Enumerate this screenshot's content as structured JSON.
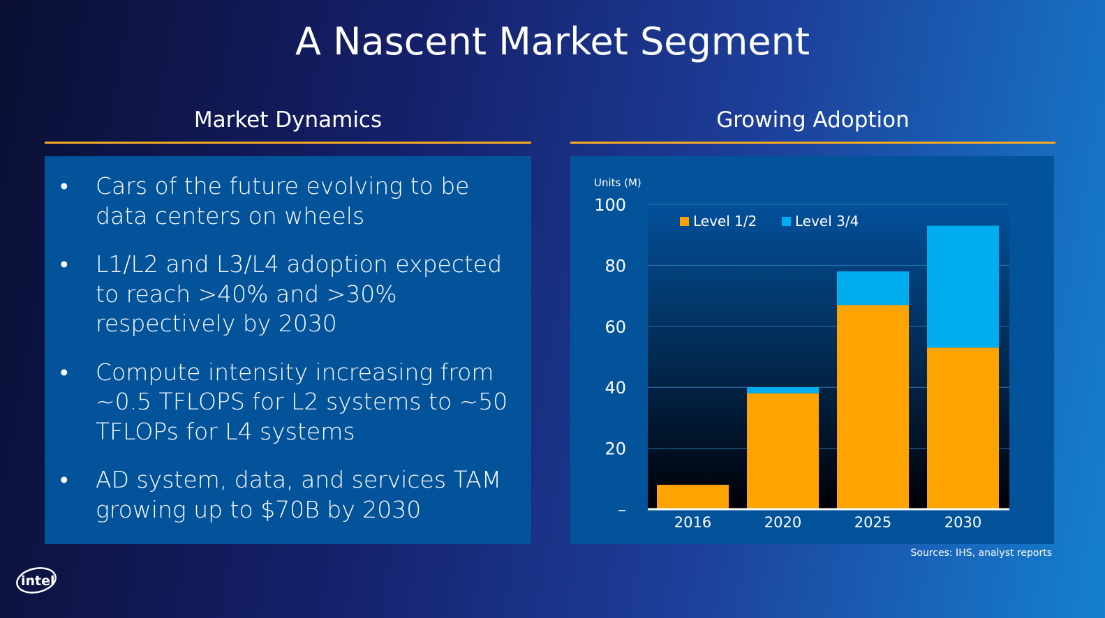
{
  "slide_title": "A Nascent Market Segment",
  "left": {
    "heading": "Market Dynamics",
    "bullets": [
      "Cars of the future evolving to be data centers on wheels",
      "L1/L2 and L3/L4 adoption expected to reach >40% and >30% respectively by 2030",
      "Compute intensity increasing from ~0.5 TFLOPS for L2 systems to ~50 TFLOPs for L4 systems",
      "AD system, data, and services TAM growing up to $70B by 2030"
    ],
    "bullet_glyph": "•"
  },
  "right": {
    "heading": "Growing Adoption"
  },
  "chart_data": {
    "type": "bar",
    "stacked": true,
    "ylabel": "Units (M)",
    "categories": [
      "2016",
      "2020",
      "2025",
      "2030"
    ],
    "series": [
      {
        "name": "Level 1/2",
        "values": [
          8,
          38,
          67,
          53
        ],
        "color": "#ffa300"
      },
      {
        "name": "Level 3/4",
        "values": [
          0,
          2,
          11,
          40
        ],
        "color": "#00aeef"
      }
    ],
    "ylim": [
      0,
      100
    ],
    "yticks": [
      0,
      20,
      40,
      60,
      80,
      100
    ],
    "ytick_labels": [
      "–",
      "20",
      "40",
      "60",
      "80",
      "100"
    ],
    "grid": true,
    "legend": "top-left"
  },
  "sources": "Sources:  IHS, analyst reports",
  "logo_text": "intel"
}
